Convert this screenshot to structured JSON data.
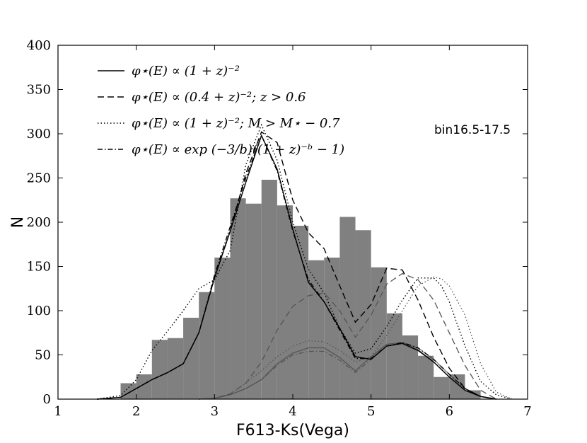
{
  "chart_data": {
    "type": "bar",
    "xlabel": "F613-Ks(Vega)",
    "ylabel": "N",
    "annotation": "bin16.5-17.5",
    "xlim": [
      1,
      7
    ],
    "ylim": [
      0,
      400
    ],
    "xticks": [
      1,
      2,
      3,
      4,
      5,
      6,
      7
    ],
    "yticks": [
      0,
      50,
      100,
      150,
      200,
      250,
      300,
      350,
      400
    ],
    "grid": false,
    "legend_position": "top-left",
    "colors": {
      "bars": "#808080",
      "lines": "#000000",
      "subcomponent": "#555555"
    },
    "histogram": {
      "bin_width": 0.2,
      "bins": [
        {
          "x": 1.9,
          "value": 18
        },
        {
          "x": 2.1,
          "value": 28
        },
        {
          "x": 2.3,
          "value": 67
        },
        {
          "x": 2.5,
          "value": 69
        },
        {
          "x": 2.7,
          "value": 92
        },
        {
          "x": 2.9,
          "value": 121
        },
        {
          "x": 3.1,
          "value": 160
        },
        {
          "x": 3.3,
          "value": 227
        },
        {
          "x": 3.5,
          "value": 221
        },
        {
          "x": 3.7,
          "value": 248
        },
        {
          "x": 3.9,
          "value": 219
        },
        {
          "x": 4.1,
          "value": 196
        },
        {
          "x": 4.3,
          "value": 157
        },
        {
          "x": 4.5,
          "value": 160
        },
        {
          "x": 4.7,
          "value": 206
        },
        {
          "x": 4.9,
          "value": 191
        },
        {
          "x": 5.1,
          "value": 149
        },
        {
          "x": 5.3,
          "value": 97
        },
        {
          "x": 5.5,
          "value": 72
        },
        {
          "x": 5.7,
          "value": 49
        },
        {
          "x": 5.9,
          "value": 25
        },
        {
          "x": 6.1,
          "value": 28
        },
        {
          "x": 6.3,
          "value": 10
        }
      ]
    },
    "series": [
      {
        "name": "$\\phi^{\\star}(E) \\propto (1+z)^{-2}$",
        "legend_text": "φ⋆(E) ∝ (1 + z)⁻²",
        "style": "solid",
        "x": [
          1.5,
          1.8,
          2.0,
          2.2,
          2.4,
          2.6,
          2.8,
          3.0,
          3.2,
          3.4,
          3.6,
          3.8,
          4.0,
          4.2,
          4.4,
          4.6,
          4.8,
          5.0,
          5.2,
          5.4,
          5.6,
          5.8,
          6.0,
          6.2,
          6.4,
          6.6
        ],
        "y": [
          0,
          2,
          12,
          22,
          30,
          40,
          75,
          137,
          190,
          245,
          298,
          260,
          192,
          132,
          110,
          80,
          48,
          45,
          60,
          63,
          55,
          42,
          25,
          10,
          3,
          0
        ]
      },
      {
        "name": "$\\phi^{\\star}(E) \\propto (0.4+z)^{-2}; z>0.6$",
        "legend_text": "φ⋆(E) ∝ (0.4 + z)⁻²; z > 0.6",
        "style": "dashed",
        "x": [
          1.5,
          1.8,
          2.0,
          2.2,
          2.4,
          2.6,
          2.8,
          3.0,
          3.2,
          3.4,
          3.6,
          3.8,
          4.0,
          4.2,
          4.4,
          4.6,
          4.8,
          5.0,
          5.2,
          5.4,
          5.6,
          5.8,
          6.0,
          6.2,
          6.4,
          6.6
        ],
        "y": [
          0,
          2,
          12,
          22,
          30,
          40,
          75,
          137,
          190,
          255,
          302,
          290,
          225,
          188,
          170,
          128,
          87,
          107,
          148,
          146,
          112,
          70,
          35,
          12,
          3,
          0
        ]
      },
      {
        "name": "$\\phi^{\\star}(E) \\propto (1+z)^{-2}; M>M^{\\star}-0.7$",
        "legend_text": "φ⋆(E) ∝ (1 + z)⁻²; M > M⋆ − 0.7",
        "style": "dotted",
        "x": [
          1.5,
          1.8,
          2.0,
          2.2,
          2.4,
          2.6,
          2.8,
          3.0,
          3.2,
          3.4,
          3.6,
          3.8,
          4.0,
          4.2,
          4.4,
          4.6,
          4.8,
          5.0,
          5.2,
          5.4,
          5.6,
          5.8,
          5.9,
          6.0,
          6.2,
          6.4,
          6.6,
          6.8
        ],
        "y": [
          0,
          4,
          22,
          55,
          77,
          100,
          125,
          135,
          168,
          265,
          310,
          270,
          200,
          147,
          120,
          80,
          52,
          57,
          82,
          112,
          137,
          137,
          128,
          110,
          60,
          20,
          5,
          0
        ]
      },
      {
        "name": "$\\phi^{\\star}(E) \\propto \\exp{(-3/b)((1+z)^{-b}-1)}$",
        "legend_text": "φ⋆(E) ∝ exp (−3/b)((1 + z)⁻ᵇ − 1)",
        "style": "dashdot",
        "x": [
          1.5,
          1.8,
          2.0,
          2.2,
          2.4,
          2.6,
          2.8,
          3.0,
          3.2,
          3.4,
          3.6,
          3.8,
          4.0,
          4.2,
          4.4,
          4.6,
          4.8,
          5.0,
          5.2,
          5.4,
          5.6,
          5.8,
          6.0,
          6.2,
          6.4,
          6.6
        ],
        "y": [
          0,
          2,
          12,
          22,
          30,
          40,
          75,
          140,
          195,
          250,
          298,
          258,
          190,
          135,
          110,
          78,
          46,
          46,
          60,
          64,
          58,
          45,
          28,
          12,
          3,
          0
        ]
      }
    ],
    "subcomponent_series": [
      {
        "style": "solid",
        "x": [
          2.8,
          3.0,
          3.2,
          3.4,
          3.6,
          3.8,
          4.0,
          4.2,
          4.4,
          4.6,
          4.8,
          5.0,
          5.2,
          5.4,
          5.6,
          5.8,
          6.0,
          6.2,
          6.4,
          6.6
        ],
        "y": [
          0,
          1,
          5,
          12,
          22,
          40,
          52,
          58,
          58,
          47,
          32,
          48,
          62,
          64,
          56,
          42,
          25,
          10,
          3,
          0
        ]
      },
      {
        "style": "dashed",
        "x": [
          2.8,
          3.0,
          3.2,
          3.4,
          3.6,
          3.8,
          4.0,
          4.2,
          4.4,
          4.6,
          4.8,
          5.0,
          5.2,
          5.4,
          5.6,
          5.8,
          6.0,
          6.2,
          6.4,
          6.6
        ],
        "y": [
          0,
          1,
          6,
          18,
          42,
          78,
          105,
          117,
          120,
          100,
          70,
          95,
          130,
          142,
          135,
          112,
          75,
          38,
          10,
          0
        ]
      },
      {
        "style": "dotted",
        "x": [
          2.8,
          3.0,
          3.2,
          3.4,
          3.6,
          3.8,
          4.0,
          4.2,
          4.4,
          4.6,
          4.8,
          5.0,
          5.2,
          5.4,
          5.6,
          5.8,
          5.9,
          6.0,
          6.2,
          6.4,
          6.6,
          6.8
        ],
        "y": [
          0,
          1,
          6,
          18,
          32,
          48,
          60,
          66,
          65,
          55,
          42,
          48,
          72,
          100,
          128,
          138,
          136,
          128,
          95,
          40,
          8,
          0
        ]
      },
      {
        "style": "dashdot",
        "x": [
          2.8,
          3.0,
          3.2,
          3.4,
          3.6,
          3.8,
          4.0,
          4.2,
          4.4,
          4.6,
          4.8,
          5.0,
          5.2,
          5.4,
          5.6,
          5.8,
          6.0,
          6.2,
          6.4,
          6.6
        ],
        "y": [
          0,
          1,
          5,
          12,
          22,
          38,
          50,
          54,
          54,
          44,
          30,
          45,
          60,
          64,
          58,
          45,
          28,
          12,
          3,
          0
        ]
      }
    ]
  }
}
